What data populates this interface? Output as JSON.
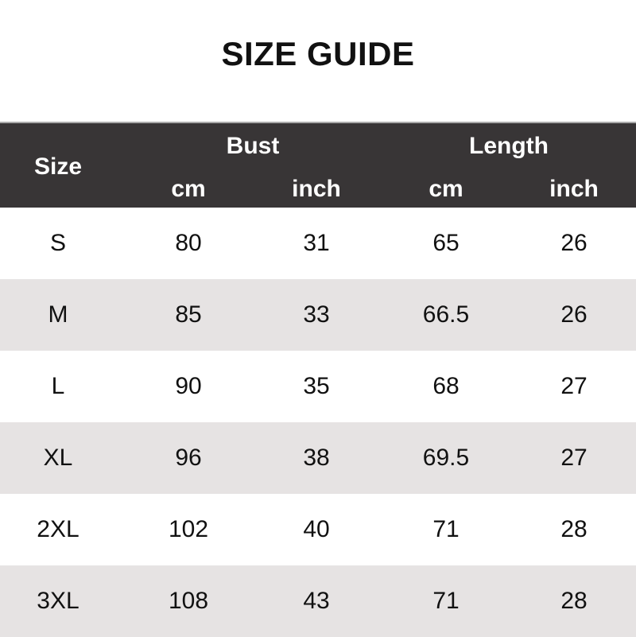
{
  "title": "SIZE GUIDE",
  "header": {
    "size": "Size",
    "bust": "Bust",
    "length": "Length",
    "bust_cm": "cm",
    "bust_inch": "inch",
    "length_cm": "cm",
    "length_inch": "inch"
  },
  "colors": {
    "header_bg": "#383536",
    "alt_row": "#e6e3e3"
  },
  "rows": [
    {
      "size": "S",
      "bust_cm": "80",
      "bust_inch": "31",
      "length_cm": "65",
      "length_inch": "26"
    },
    {
      "size": "M",
      "bust_cm": "85",
      "bust_inch": "33",
      "length_cm": "66.5",
      "length_inch": "26"
    },
    {
      "size": "L",
      "bust_cm": "90",
      "bust_inch": "35",
      "length_cm": "68",
      "length_inch": "27"
    },
    {
      "size": "XL",
      "bust_cm": "96",
      "bust_inch": "38",
      "length_cm": "69.5",
      "length_inch": "27"
    },
    {
      "size": "2XL",
      "bust_cm": "102",
      "bust_inch": "40",
      "length_cm": "71",
      "length_inch": "28"
    },
    {
      "size": "3XL",
      "bust_cm": "108",
      "bust_inch": "43",
      "length_cm": "71",
      "length_inch": "28"
    }
  ]
}
